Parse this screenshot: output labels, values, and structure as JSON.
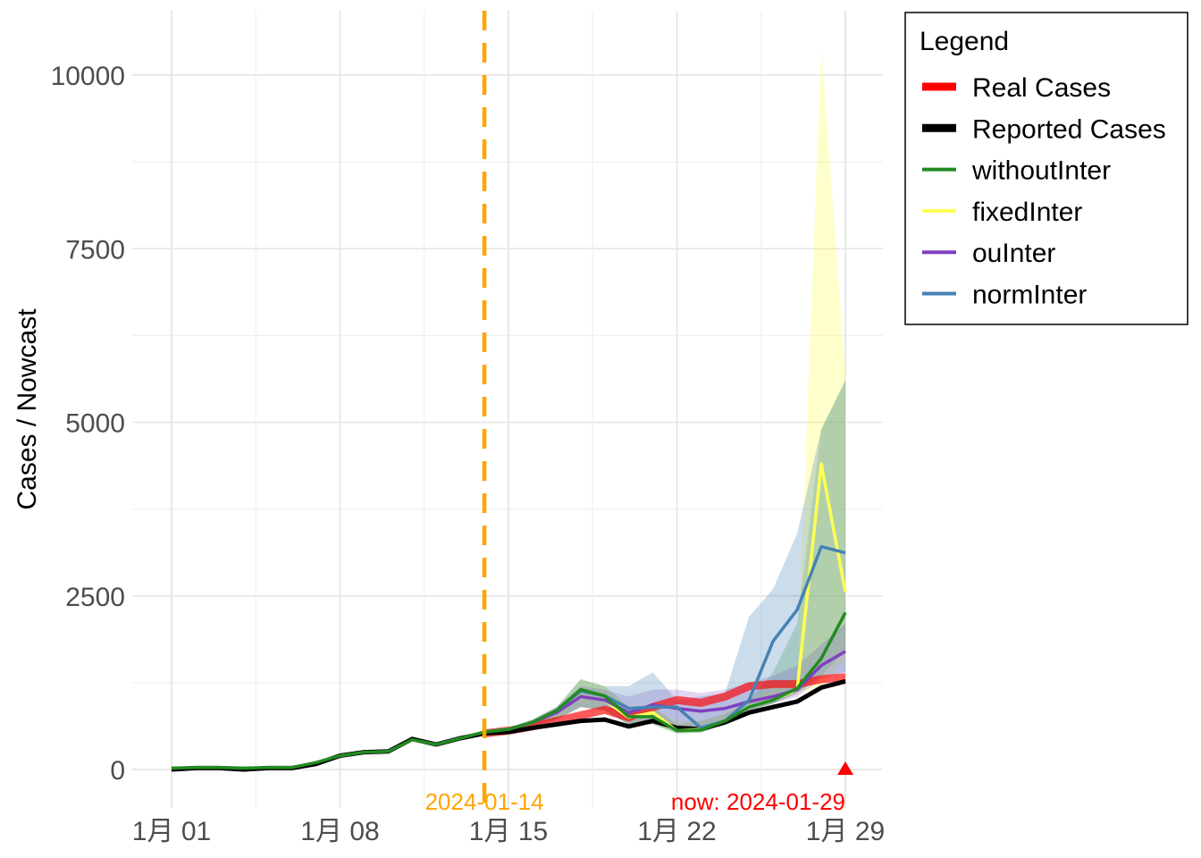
{
  "chart_data": {
    "type": "line",
    "title": "",
    "xlabel": "",
    "ylabel": "Cases / Nowcast",
    "x_tick_labels": [
      "1月 01",
      "1月 08",
      "1月 15",
      "1月 22",
      "1月 29"
    ],
    "y_ticks": [
      0,
      2500,
      5000,
      7500,
      10000
    ],
    "y_tick_labels": [
      "0",
      "2500",
      "5000",
      "7500",
      "10000"
    ],
    "ylim": [
      -500,
      10800
    ],
    "xlim_days": [
      1,
      30.2
    ],
    "grid": true,
    "legend": {
      "title": "Legend",
      "placement": "right",
      "entries": [
        {
          "label": "Real Cases",
          "color": "#ff0000"
        },
        {
          "label": "Reported Cases",
          "color": "#000000"
        },
        {
          "label": "withoutInter",
          "color": "#228b22"
        },
        {
          "label": "fixedInter",
          "color": "#ffff55"
        },
        {
          "label": "ouInter",
          "color": "#8040c0"
        },
        {
          "label": "normInter",
          "color": "#4682b4"
        }
      ]
    },
    "vline": {
      "date": "2024-01-14",
      "label": "2024-01-14",
      "color": "#ffa500"
    },
    "now_marker": {
      "date": "2024-01-29",
      "label": "now: 2024-01-29",
      "color": "#ff0000"
    },
    "series": [
      {
        "name": "Real Cases",
        "color": "#ff0000",
        "x": [
          14,
          15,
          16,
          17,
          18,
          19,
          20,
          21,
          22,
          23,
          24,
          25,
          26,
          27,
          28,
          29
        ],
        "y": [
          520,
          560,
          620,
          700,
          780,
          860,
          750,
          900,
          1000,
          960,
          1050,
          1200,
          1230,
          1230,
          1300,
          1330
        ]
      },
      {
        "name": "Reported Cases",
        "color": "#000000",
        "x": [
          1,
          2,
          3,
          4,
          5,
          6,
          7,
          8,
          9,
          10,
          11,
          12,
          13,
          14,
          15,
          16,
          17,
          18,
          19,
          20,
          21,
          22,
          23,
          24,
          25,
          26,
          27,
          28,
          29
        ],
        "y": [
          0,
          20,
          20,
          0,
          20,
          20,
          80,
          200,
          250,
          260,
          440,
          360,
          450,
          520,
          540,
          600,
          650,
          700,
          720,
          620,
          700,
          600,
          580,
          680,
          820,
          900,
          980,
          1180,
          1270
        ]
      },
      {
        "name": "withoutInter",
        "color": "#228b22",
        "x": [
          1,
          2,
          3,
          4,
          5,
          6,
          7,
          8,
          9,
          10,
          11,
          12,
          13,
          14,
          15,
          16,
          17,
          18,
          19,
          20,
          21,
          22,
          23,
          24,
          25,
          26,
          27,
          28,
          29
        ],
        "y": [
          20,
          30,
          30,
          20,
          30,
          30,
          100,
          200,
          250,
          260,
          430,
          360,
          450,
          540,
          580,
          680,
          850,
          1150,
          1060,
          760,
          760,
          560,
          570,
          700,
          900,
          1000,
          1170,
          1600,
          2260
        ],
        "band_x": [
          14,
          15,
          16,
          17,
          18,
          19,
          20,
          21,
          22,
          23,
          24,
          25,
          26,
          27,
          28,
          29
        ],
        "band_low": [
          520,
          560,
          620,
          720,
          900,
          850,
          650,
          650,
          520,
          530,
          660,
          850,
          950,
          1100,
          1350,
          1700
        ],
        "band_high": [
          560,
          600,
          720,
          900,
          1300,
          1200,
          900,
          900,
          650,
          700,
          800,
          1000,
          1400,
          2100,
          4900,
          5600
        ]
      },
      {
        "name": "fixedInter",
        "color": "#ffff55",
        "x": [
          14,
          15,
          16,
          17,
          18,
          19,
          20,
          21,
          22,
          23,
          24,
          25,
          26,
          27,
          28,
          29
        ],
        "y": [
          540,
          580,
          680,
          830,
          1050,
          1000,
          750,
          820,
          560,
          580,
          700,
          900,
          1000,
          1150,
          4400,
          2560
        ],
        "band_x": [
          14,
          15,
          16,
          17,
          18,
          19,
          20,
          21,
          22,
          23,
          24,
          25,
          26,
          27,
          28,
          29
        ],
        "band_low": [
          520,
          560,
          620,
          720,
          900,
          850,
          650,
          650,
          520,
          530,
          660,
          850,
          950,
          1100,
          1200,
          1600
        ],
        "band_high": [
          560,
          600,
          720,
          900,
          1300,
          1200,
          900,
          900,
          700,
          700,
          800,
          1000,
          1200,
          1300,
          10400,
          5700
        ]
      },
      {
        "name": "ouInter",
        "color": "#8040c0",
        "x": [
          14,
          15,
          16,
          17,
          18,
          19,
          20,
          21,
          22,
          23,
          24,
          25,
          26,
          27,
          28,
          29
        ],
        "y": [
          540,
          580,
          680,
          820,
          1050,
          1000,
          820,
          930,
          880,
          840,
          880,
          980,
          1050,
          1150,
          1500,
          1700
        ],
        "band_x": [
          14,
          15,
          16,
          17,
          18,
          19,
          20,
          21,
          22,
          23,
          24,
          25,
          26,
          27,
          28,
          29
        ],
        "band_low": [
          520,
          560,
          620,
          720,
          900,
          850,
          650,
          700,
          600,
          600,
          700,
          850,
          950,
          1050,
          1300,
          1400
        ],
        "band_high": [
          560,
          600,
          720,
          900,
          1200,
          1150,
          1050,
          1150,
          1150,
          1100,
          1150,
          1250,
          1350,
          1500,
          1800,
          2100
        ]
      },
      {
        "name": "normInter",
        "color": "#4682b4",
        "x": [
          14,
          15,
          16,
          17,
          18,
          19,
          20,
          21,
          22,
          23,
          24,
          25,
          26,
          27,
          28,
          29
        ],
        "y": [
          540,
          580,
          680,
          850,
          1130,
          1060,
          880,
          900,
          900,
          600,
          700,
          1000,
          1850,
          2300,
          3210,
          3120
        ],
        "band_x": [
          14,
          15,
          16,
          17,
          18,
          19,
          20,
          21,
          22,
          23,
          24,
          25,
          26,
          27,
          28,
          29
        ],
        "band_low": [
          520,
          560,
          620,
          720,
          900,
          850,
          650,
          650,
          520,
          530,
          660,
          850,
          950,
          1100,
          1350,
          1400
        ],
        "band_high": [
          560,
          600,
          720,
          900,
          1300,
          1200,
          1200,
          1400,
          1000,
          1050,
          1100,
          2200,
          2600,
          3400,
          4900,
          5600
        ]
      }
    ]
  }
}
